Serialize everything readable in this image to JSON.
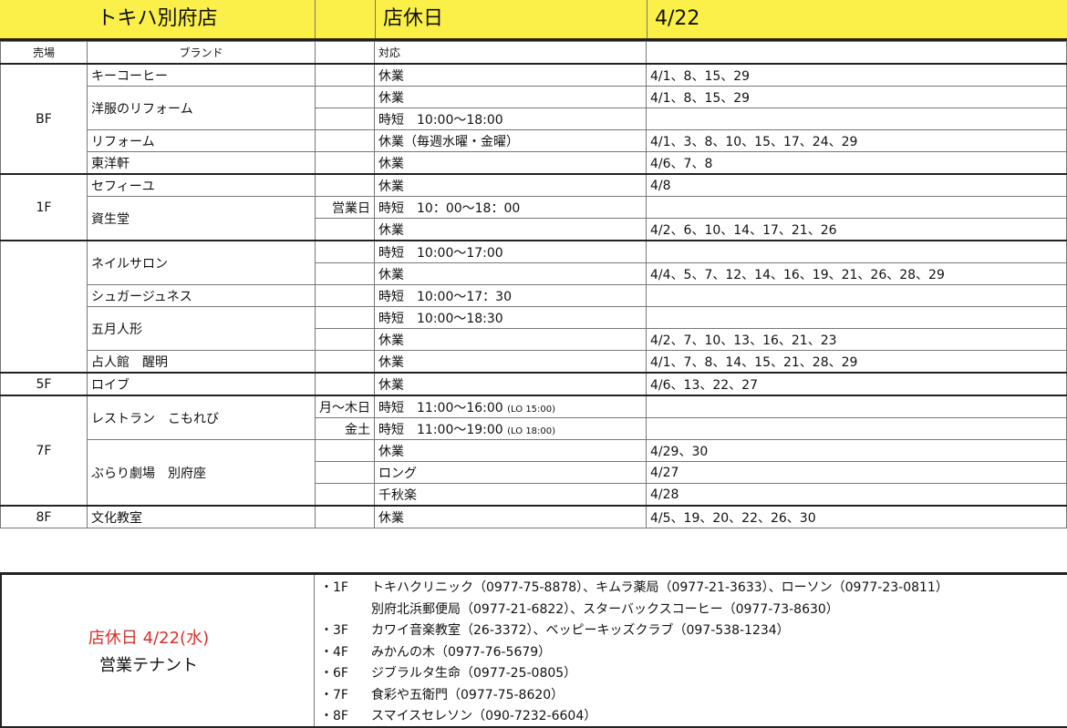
{
  "header": {
    "store": "トキハ別府店",
    "title": "店休日",
    "date": "4/22"
  },
  "columns": {
    "floor": "売場",
    "brand": "ブランド",
    "action": "対応"
  },
  "floors": [
    {
      "floor": "BF",
      "brands": [
        {
          "name": "キーコーヒー",
          "entries": [
            {
              "sub": "",
              "action": "休業",
              "dates": "4/1、8、15、29"
            }
          ]
        },
        {
          "name": "洋服のリフォーム",
          "entries": [
            {
              "sub": "",
              "action": "休業",
              "dates": "4/1、8、15、29"
            },
            {
              "sub": "",
              "action": "時短　10:00〜18:00",
              "dates": ""
            }
          ]
        },
        {
          "name": "リフォーム",
          "entries": [
            {
              "sub": "",
              "action": "休業（毎週水曜・金曜）",
              "dates": "4/1、3、8、10、15、17、24、29"
            }
          ]
        },
        {
          "name": "東洋軒",
          "entries": [
            {
              "sub": "",
              "action": "休業",
              "dates": "4/6、7、8"
            }
          ]
        }
      ]
    },
    {
      "floor": "1F",
      "brands": [
        {
          "name": "セフィーユ",
          "entries": [
            {
              "sub": "",
              "action": "休業",
              "dates": "4/8"
            }
          ]
        },
        {
          "name": "資生堂",
          "entries": [
            {
              "sub": "営業日",
              "action": "時短　10：00〜18：00",
              "dates": ""
            },
            {
              "sub": "",
              "action": "休業",
              "dates": "4/2、6、10、14、17、21、26"
            }
          ]
        }
      ]
    },
    {
      "floor": "",
      "brands": [
        {
          "name": "ネイルサロン",
          "entries": [
            {
              "sub": "",
              "action": "時短　10:00〜17:00",
              "dates": ""
            },
            {
              "sub": "",
              "action": "休業",
              "dates": "4/4、5、7、12、14、16、19、21、26、28、29"
            }
          ]
        },
        {
          "name": "シュガージュネス",
          "entries": [
            {
              "sub": "",
              "action": "時短　10:00〜17：30",
              "dates": ""
            }
          ]
        },
        {
          "name": "五月人形",
          "entries": [
            {
              "sub": "",
              "action": "時短　10:00〜18:30",
              "dates": ""
            },
            {
              "sub": "",
              "action": "休業",
              "dates": "4/2、7、10、13、16、21、23"
            }
          ]
        },
        {
          "name": "占人館　醒明",
          "entries": [
            {
              "sub": "",
              "action": "休業",
              "dates": "4/1、7、8、14、15、21、28、29"
            }
          ]
        }
      ]
    },
    {
      "floor": "5F",
      "brands": [
        {
          "name": "ロイブ",
          "entries": [
            {
              "sub": "",
              "action": "休業",
              "dates": "4/6、13、22、27"
            }
          ]
        }
      ]
    },
    {
      "floor": "7F",
      "brands": [
        {
          "name": "レストラン　こもれび",
          "entries": [
            {
              "sub": "月〜木日",
              "action": "時短　11:00〜16:00",
              "note": "(LO 15:00)",
              "dates": ""
            },
            {
              "sub": "金土",
              "action": "時短　11:00〜19:00",
              "note": "(LO 18:00)",
              "dates": ""
            }
          ]
        },
        {
          "name": "ぶらり劇場　別府座",
          "entries": [
            {
              "sub": "",
              "action": "休業",
              "dates": "4/29、30"
            },
            {
              "sub": "",
              "action": "ロング",
              "dates": "4/27"
            },
            {
              "sub": "",
              "action": "千秋楽",
              "dates": "4/28"
            }
          ]
        }
      ]
    },
    {
      "floor": "8F",
      "brands": [
        {
          "name": "文化教室",
          "entries": [
            {
              "sub": "",
              "action": "休業",
              "dates": "4/5、19、20、22、26、30"
            }
          ]
        }
      ]
    }
  ],
  "bottom": {
    "title_red": "店休日 4/22(水)",
    "title": "営業テナント",
    "tenants": [
      {
        "floor": "・1F",
        "text": "トキハクリニック（0977-75-8878）、キムラ薬局（0977-21-3633）、ローソン（0977-23-0811）"
      },
      {
        "floor": "",
        "text": "別府北浜郵便局（0977-21-6822）、スターバックスコーヒー（0977-73-8630）"
      },
      {
        "floor": "・3F",
        "text": "カワイ音楽教室（26-3372）、ベッピーキッズクラブ（097-538-1234）"
      },
      {
        "floor": "・4F",
        "text": "みかんの木（0977-76-5679）"
      },
      {
        "floor": "・6F",
        "text": "ジブラルタ生命（0977-25-0805）"
      },
      {
        "floor": "・7F",
        "text": "食彩や五衛門（0977-75-8620）"
      },
      {
        "floor": "・8F",
        "text": "スマイスセレソン（090-7232-6604）"
      }
    ],
    "colors": {
      "red": "#d9302a",
      "header_yellow": "#fbf04a"
    }
  }
}
